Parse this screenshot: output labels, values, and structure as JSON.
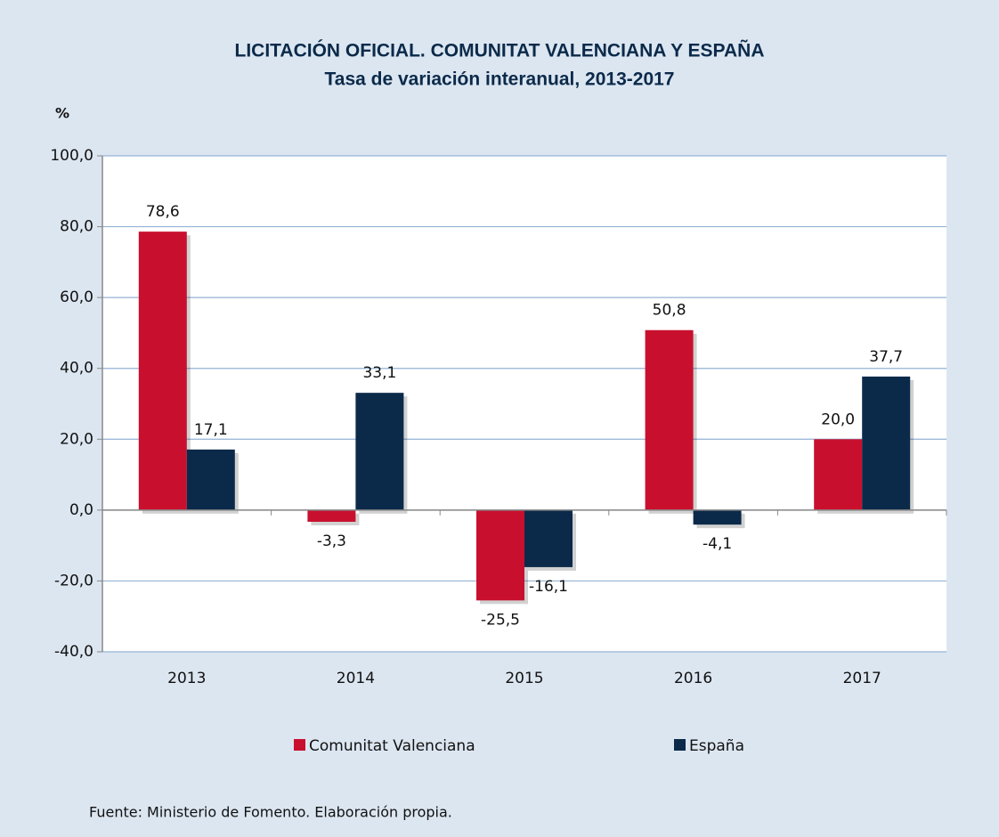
{
  "chart_data": {
    "type": "bar",
    "title": "LICITACIÓN OFICIAL. COMUNITAT VALENCIANA Y ESPAÑA",
    "subtitle": "Tasa de variación interanual, 2013-2017",
    "y_label": "%",
    "source": "Fuente: Ministerio de Fomento. Elaboración propia.",
    "categories": [
      "2013",
      "2014",
      "2015",
      "2016",
      "2017"
    ],
    "series": [
      {
        "name": "Comunitat Valenciana",
        "color": "#c8102e",
        "values": [
          78.6,
          -3.3,
          -25.5,
          50.8,
          20.0
        ],
        "value_labels": [
          "78,6",
          "-3,3",
          "-25,5",
          "50,8",
          "20,0"
        ]
      },
      {
        "name": "España",
        "color": "#0b2a4a",
        "values": [
          17.1,
          33.1,
          -16.1,
          -4.1,
          37.7
        ],
        "value_labels": [
          "17,1",
          "33,1",
          "-16,1",
          "-4,1",
          "37,7"
        ]
      }
    ],
    "ylim": [
      -40,
      100
    ],
    "yticks": [
      {
        "value": -40,
        "label": "-40,0"
      },
      {
        "value": -20,
        "label": "-20,0"
      },
      {
        "value": 0,
        "label": "0,0"
      },
      {
        "value": 20,
        "label": "20,0"
      },
      {
        "value": 40,
        "label": "40,0"
      },
      {
        "value": 60,
        "label": "60,0"
      },
      {
        "value": 80,
        "label": "80,0"
      },
      {
        "value": 100,
        "label": "100,0"
      }
    ],
    "grid": true,
    "legend": "bottom"
  }
}
